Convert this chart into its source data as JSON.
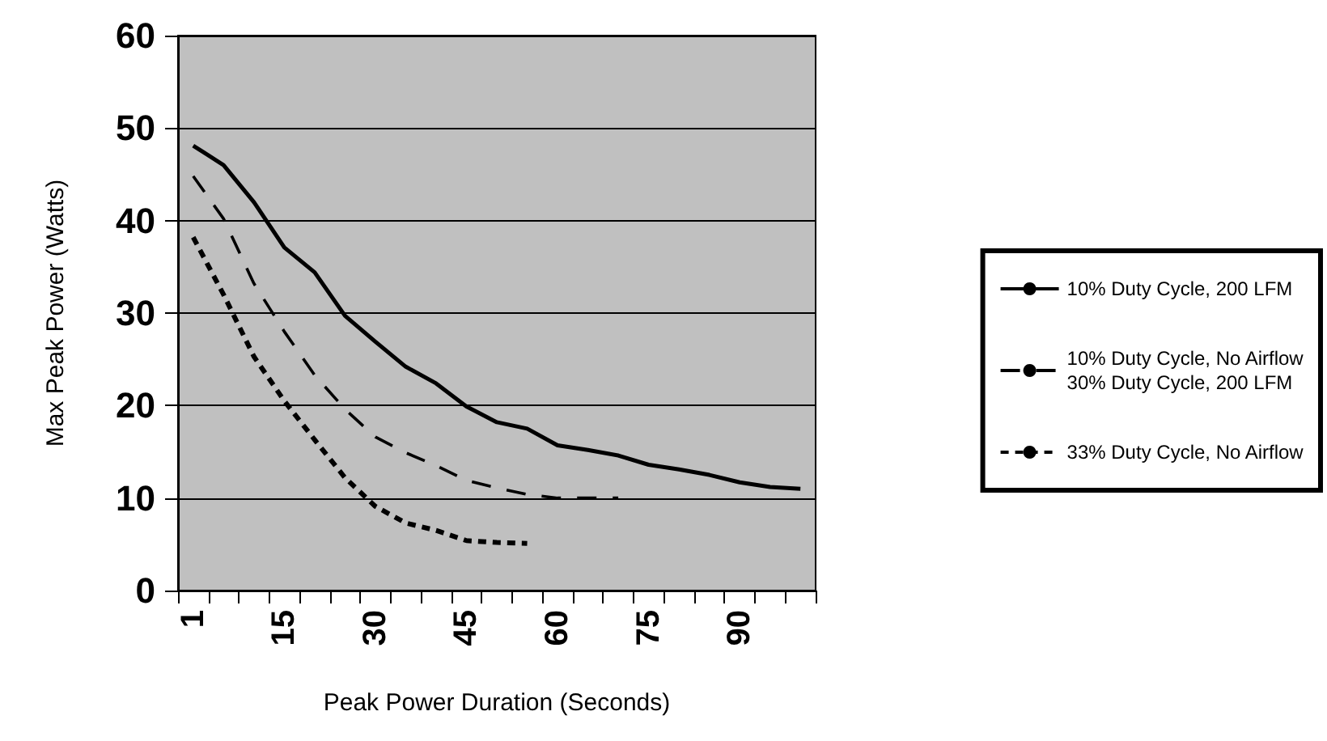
{
  "chart_data": {
    "type": "line",
    "xlabel": "Peak Power Duration (Seconds)",
    "ylabel": "Max Peak Power (Watts)",
    "categories": [
      "1",
      null,
      null,
      "15",
      null,
      null,
      "30",
      null,
      null,
      "45",
      null,
      null,
      "60",
      null,
      null,
      "75",
      null,
      null,
      "90",
      null,
      null
    ],
    "series": [
      {
        "name": "10% Duty Cycle, 200 LFM",
        "color": "#000000",
        "line_style": "solid",
        "values": [
          48.1,
          46.0,
          42.0,
          37.1,
          34.4,
          29.7,
          26.9,
          24.2,
          22.4,
          19.9,
          18.2,
          17.5,
          15.7,
          15.2,
          14.6,
          13.6,
          13.1,
          12.5,
          11.7,
          11.2,
          11.0
        ]
      },
      {
        "name": "10% Duty Cycle, No Airflow\n30% Duty Cycle, 200 LFM",
        "color": "#000000",
        "line_style": "dashed",
        "values": [
          44.8,
          40.2,
          33.2,
          28.0,
          23.3,
          19.6,
          16.6,
          14.9,
          13.5,
          11.9,
          11.1,
          10.4,
          10.0,
          10.0,
          10.0,
          null,
          null,
          null,
          null,
          null,
          null
        ]
      },
      {
        "name": "33% Duty Cycle, No Airflow",
        "color": "#000000",
        "line_style": "dotted",
        "values": [
          38.2,
          32.0,
          25.3,
          20.5,
          16.3,
          12.2,
          9.1,
          7.3,
          6.5,
          5.4,
          5.2,
          5.1,
          null,
          null,
          null,
          null,
          null,
          null,
          null,
          null,
          null
        ]
      }
    ],
    "ylim": [
      0,
      60
    ],
    "yticks": [
      0,
      10,
      20,
      30,
      40,
      50,
      60
    ],
    "grid": "y",
    "legend": "right",
    "marker": "none"
  }
}
